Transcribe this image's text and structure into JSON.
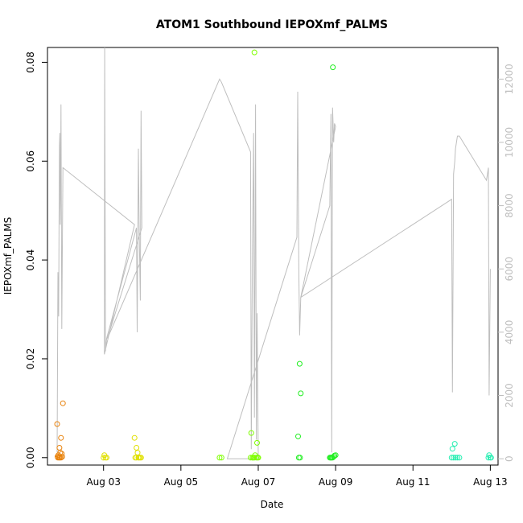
{
  "chart_data": {
    "type": "scatter",
    "title": "ATOM1 Southbound IEPOXmf_PALMS",
    "xlabel": "Date",
    "ylabel": "IEPOXmf_PALMS",
    "x_range_days": [
      1.55,
      13.2
    ],
    "x_ticks": [
      {
        "v": 3,
        "label": "Aug 03"
      },
      {
        "v": 5,
        "label": "Aug 05"
      },
      {
        "v": 7,
        "label": "Aug 07"
      },
      {
        "v": 9,
        "label": "Aug 09"
      },
      {
        "v": 11,
        "label": "Aug 11"
      },
      {
        "v": 13,
        "label": "Aug 13"
      }
    ],
    "ylim": [
      -0.0015,
      0.083
    ],
    "y_ticks": [
      {
        "v": 0.0,
        "label": "0.00"
      },
      {
        "v": 0.02,
        "label": "0.02"
      },
      {
        "v": 0.04,
        "label": "0.04"
      },
      {
        "v": 0.06,
        "label": "0.06"
      },
      {
        "v": 0.08,
        "label": "0.08"
      }
    ],
    "y2lim": [
      -200,
      13000
    ],
    "y2_ticks": [
      {
        "v": 0,
        "label": "0"
      },
      {
        "v": 2000,
        "label": "2000"
      },
      {
        "v": 4000,
        "label": "4000"
      },
      {
        "v": 6000,
        "label": "6000"
      },
      {
        "v": 8000,
        "label": "8000"
      },
      {
        "v": 10000,
        "label": "10000"
      },
      {
        "v": 12000,
        "label": "12000"
      }
    ],
    "line_color": "#bebebe",
    "series": [
      {
        "color": "#e8820c",
        "points": [
          [
            1.8,
            0.0068
          ],
          [
            1.85,
            0.0
          ],
          [
            1.82,
            0.0
          ],
          [
            1.87,
            0.0
          ],
          [
            1.9,
            0.0
          ],
          [
            1.83,
            0.0005
          ],
          [
            1.88,
            0.001
          ],
          [
            1.92,
            0.0008
          ],
          [
            1.9,
            0.004
          ],
          [
            1.95,
            0.011
          ],
          [
            1.86,
            0.002
          ],
          [
            1.81,
            0.0002
          ],
          [
            1.93,
            0.0002
          ]
        ]
      },
      {
        "color": "#e0e000",
        "points": [
          [
            3.0,
            0.0
          ],
          [
            3.05,
            0.0
          ],
          [
            3.02,
            0.0005
          ],
          [
            3.08,
            0.0
          ],
          [
            3.8,
            0.004
          ],
          [
            3.82,
            0.0
          ],
          [
            3.85,
            0.0
          ],
          [
            3.9,
            0.0
          ],
          [
            3.88,
            0.001
          ],
          [
            3.95,
            0.0
          ],
          [
            3.92,
            0.0
          ],
          [
            3.97,
            0.0
          ],
          [
            3.85,
            0.002
          ]
        ]
      },
      {
        "color": "#7fff00",
        "points": [
          [
            6.0,
            0.0
          ],
          [
            6.05,
            0.0
          ],
          [
            6.8,
            0.0
          ],
          [
            6.85,
            0.0
          ],
          [
            6.9,
            0.0
          ],
          [
            6.95,
            0.0
          ],
          [
            6.88,
            0.0
          ],
          [
            6.82,
            0.005
          ],
          [
            7.0,
            0.0
          ],
          [
            6.92,
            0.0005
          ],
          [
            6.97,
            0.003
          ],
          [
            6.9,
            0.082
          ],
          [
            6.85,
            0.0
          ],
          [
            6.98,
            0.0
          ]
        ]
      },
      {
        "color": "#22ee22",
        "points": [
          [
            8.05,
            0.0
          ],
          [
            8.08,
            0.0
          ],
          [
            8.03,
            0.0043
          ],
          [
            8.07,
            0.019
          ],
          [
            8.1,
            0.013
          ],
          [
            8.85,
            0.0
          ],
          [
            8.9,
            0.0
          ],
          [
            8.92,
            0.0
          ],
          [
            8.95,
            0.0002
          ],
          [
            8.97,
            0.0004
          ],
          [
            8.88,
            0.0
          ],
          [
            9.0,
            0.0005
          ],
          [
            8.93,
            0.079
          ],
          [
            8.87,
            0.0
          ]
        ]
      },
      {
        "color": "#22eeb0",
        "points": [
          [
            12.0,
            0.0
          ],
          [
            12.05,
            0.0
          ],
          [
            12.1,
            0.0
          ],
          [
            12.15,
            0.0
          ],
          [
            12.2,
            0.0
          ],
          [
            12.02,
            0.0018
          ],
          [
            12.08,
            0.0028
          ],
          [
            12.95,
            0.0
          ],
          [
            13.0,
            0.0
          ],
          [
            12.97,
            0.0005
          ],
          [
            13.02,
            0.0
          ]
        ]
      }
    ],
    "secondary_line": [
      [
        1.8,
        200
      ],
      [
        1.82,
        5900
      ],
      [
        1.84,
        4500
      ],
      [
        1.85,
        7500
      ],
      [
        1.86,
        9900
      ],
      [
        1.87,
        10300
      ],
      [
        1.88,
        7400
      ],
      [
        1.89,
        8400
      ],
      [
        1.9,
        11200
      ],
      [
        1.92,
        4100
      ],
      [
        1.95,
        9200
      ],
      [
        3.8,
        7400
      ],
      [
        3.02,
        3300
      ],
      [
        3.03,
        13000
      ],
      [
        3.05,
        3400
      ],
      [
        3.08,
        3800
      ],
      [
        3.85,
        7300
      ],
      [
        3.87,
        4000
      ],
      [
        3.9,
        9800
      ],
      [
        3.92,
        7400
      ],
      [
        3.95,
        5000
      ],
      [
        3.97,
        11000
      ],
      [
        3.99,
        7300
      ],
      [
        3.1,
        3800
      ],
      [
        6.0,
        12000
      ],
      [
        6.05,
        11900
      ],
      [
        6.8,
        9700
      ],
      [
        6.82,
        300
      ],
      [
        6.85,
        6800
      ],
      [
        6.88,
        10300
      ],
      [
        6.9,
        1300
      ],
      [
        6.93,
        11200
      ],
      [
        6.95,
        600
      ],
      [
        6.97,
        4600
      ],
      [
        7.0,
        0
      ],
      [
        6.2,
        0
      ],
      [
        8.0,
        7000
      ],
      [
        8.02,
        11600
      ],
      [
        8.05,
        5900
      ],
      [
        8.07,
        3900
      ],
      [
        8.1,
        5100
      ],
      [
        8.85,
        8000
      ],
      [
        8.88,
        10900
      ],
      [
        8.9,
        200
      ],
      [
        8.92,
        11100
      ],
      [
        8.95,
        10000
      ],
      [
        8.97,
        10600
      ],
      [
        9.0,
        10500
      ],
      [
        8.1,
        5100
      ],
      [
        12.0,
        8200
      ],
      [
        12.02,
        2100
      ],
      [
        12.05,
        9000
      ],
      [
        12.08,
        9400
      ],
      [
        12.1,
        9800
      ],
      [
        12.15,
        10200
      ],
      [
        12.2,
        10200
      ],
      [
        12.9,
        8800
      ],
      [
        12.95,
        9200
      ],
      [
        12.97,
        2000
      ],
      [
        13.0,
        6000
      ]
    ]
  }
}
